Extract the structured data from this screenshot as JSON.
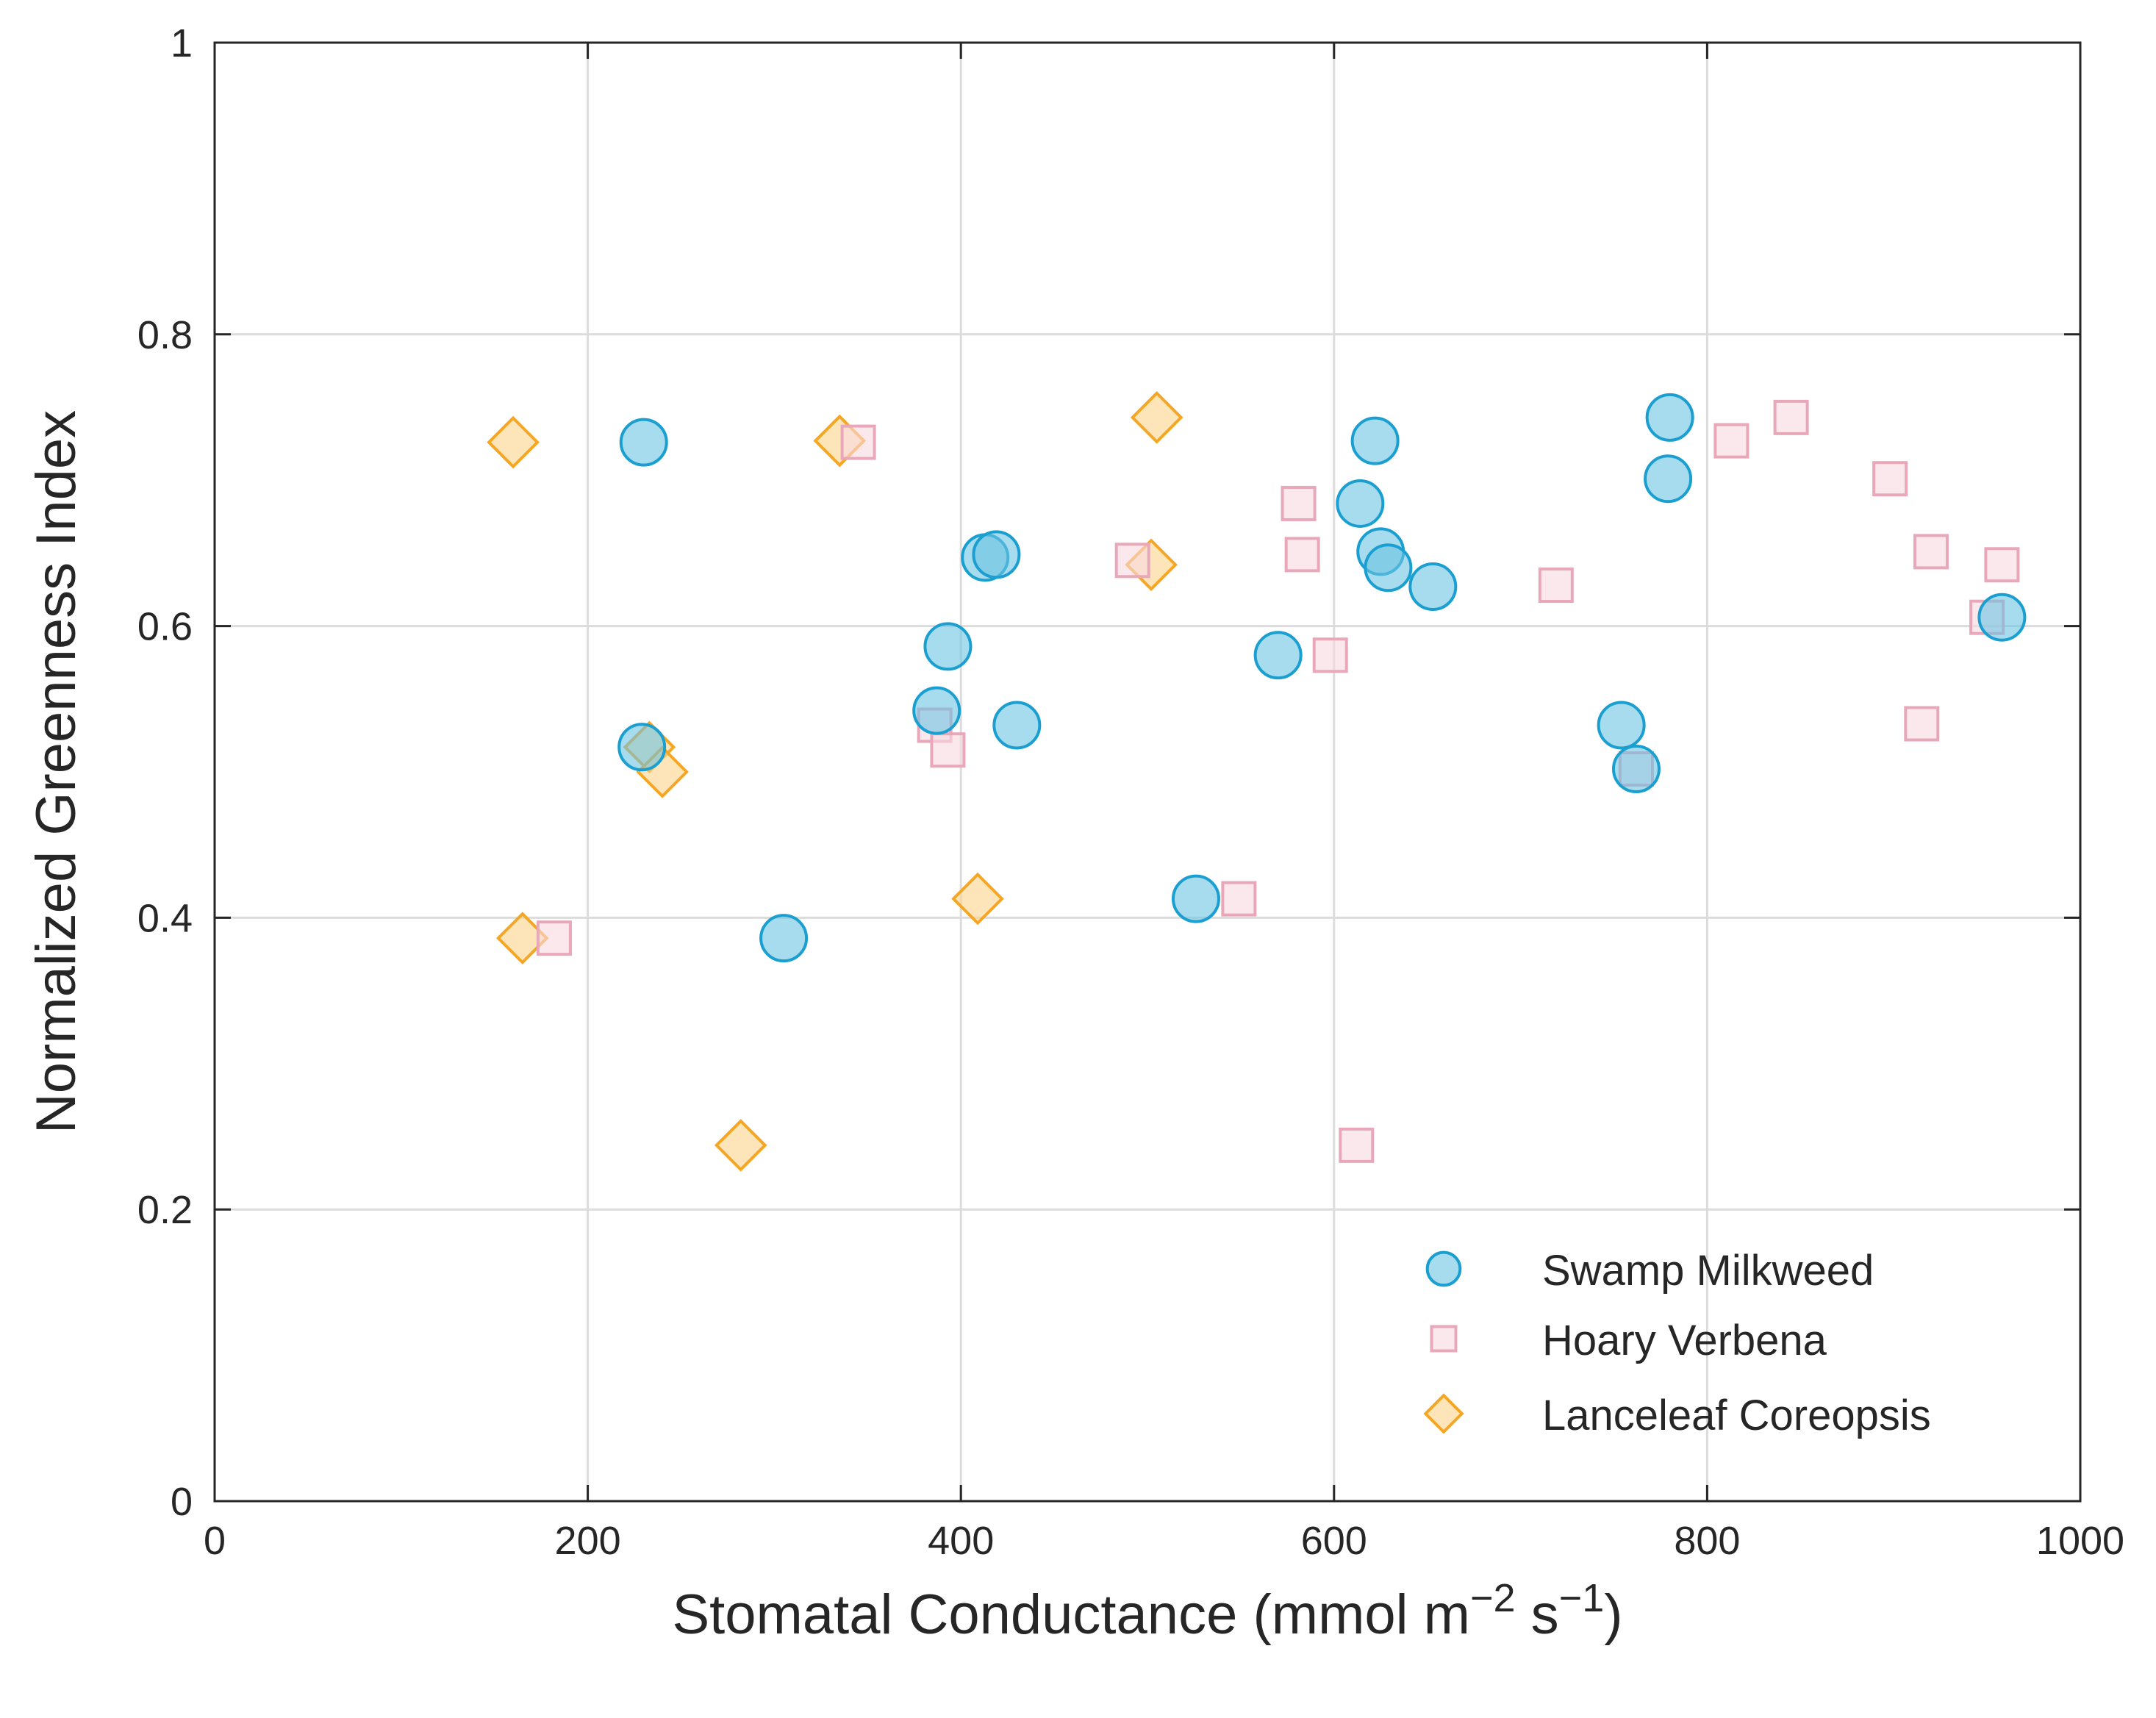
{
  "chart_data": {
    "type": "scatter",
    "title": "",
    "xlabel": {
      "main": "Stomatal Conductance (mmol m",
      "sup1": "−2",
      "mid": " s",
      "sup2": "−1",
      "end": ")"
    },
    "ylabel": "Normalized Greenness Index",
    "xlim": [
      0,
      1000
    ],
    "ylim": [
      0,
      1
    ],
    "xticks": [
      0,
      200,
      400,
      600,
      800,
      1000
    ],
    "xtick_labels": [
      "0",
      "200",
      "400",
      "600",
      "800",
      "1000"
    ],
    "yticks": [
      0,
      0.2,
      0.4,
      0.6,
      0.8,
      1
    ],
    "ytick_labels": [
      "0",
      "0.2",
      "0.4",
      "0.6",
      "0.8",
      "1"
    ],
    "grid": true,
    "legend_position": "bottom-right",
    "series": [
      {
        "name": "Swamp Milkweed",
        "marker": "circle",
        "color": "#1a9fd0",
        "fill": "#6cc3e3",
        "points": [
          {
            "x": 230,
            "y": 0.726
          },
          {
            "x": 229,
            "y": 0.517
          },
          {
            "x": 305,
            "y": 0.386
          },
          {
            "x": 387,
            "y": 0.542
          },
          {
            "x": 393,
            "y": 0.586
          },
          {
            "x": 413,
            "y": 0.647
          },
          {
            "x": 419,
            "y": 0.649
          },
          {
            "x": 430,
            "y": 0.532
          },
          {
            "x": 526,
            "y": 0.413
          },
          {
            "x": 570,
            "y": 0.58
          },
          {
            "x": 614,
            "y": 0.684
          },
          {
            "x": 622,
            "y": 0.727
          },
          {
            "x": 625,
            "y": 0.651
          },
          {
            "x": 629,
            "y": 0.64
          },
          {
            "x": 653,
            "y": 0.627
          },
          {
            "x": 754,
            "y": 0.532
          },
          {
            "x": 762,
            "y": 0.502
          },
          {
            "x": 780,
            "y": 0.743
          },
          {
            "x": 779,
            "y": 0.701
          },
          {
            "x": 958,
            "y": 0.606
          }
        ]
      },
      {
        "name": "Hoary Verbena",
        "marker": "square",
        "color": "#e8a8ba",
        "fill": "#f6d8e1",
        "points": [
          {
            "x": 182,
            "y": 0.386
          },
          {
            "x": 345,
            "y": 0.726
          },
          {
            "x": 386,
            "y": 0.532
          },
          {
            "x": 393,
            "y": 0.515
          },
          {
            "x": 492,
            "y": 0.645
          },
          {
            "x": 549,
            "y": 0.413
          },
          {
            "x": 581,
            "y": 0.684
          },
          {
            "x": 583,
            "y": 0.649
          },
          {
            "x": 598,
            "y": 0.58
          },
          {
            "x": 612,
            "y": 0.244
          },
          {
            "x": 719,
            "y": 0.628
          },
          {
            "x": 762,
            "y": 0.502
          },
          {
            "x": 813,
            "y": 0.727
          },
          {
            "x": 845,
            "y": 0.743
          },
          {
            "x": 898,
            "y": 0.701
          },
          {
            "x": 915,
            "y": 0.533
          },
          {
            "x": 920,
            "y": 0.651
          },
          {
            "x": 950,
            "y": 0.606
          },
          {
            "x": 958,
            "y": 0.642
          }
        ]
      },
      {
        "name": "Lanceleaf Coreopsis",
        "marker": "diamond",
        "color": "#f5a623",
        "fill": "#fbd38a",
        "points": [
          {
            "x": 160,
            "y": 0.726
          },
          {
            "x": 165,
            "y": 0.386
          },
          {
            "x": 233,
            "y": 0.517
          },
          {
            "x": 240,
            "y": 0.5
          },
          {
            "x": 282,
            "y": 0.244
          },
          {
            "x": 335,
            "y": 0.727
          },
          {
            "x": 409,
            "y": 0.413
          },
          {
            "x": 502,
            "y": 0.642
          },
          {
            "x": 505,
            "y": 0.743
          }
        ]
      }
    ]
  }
}
